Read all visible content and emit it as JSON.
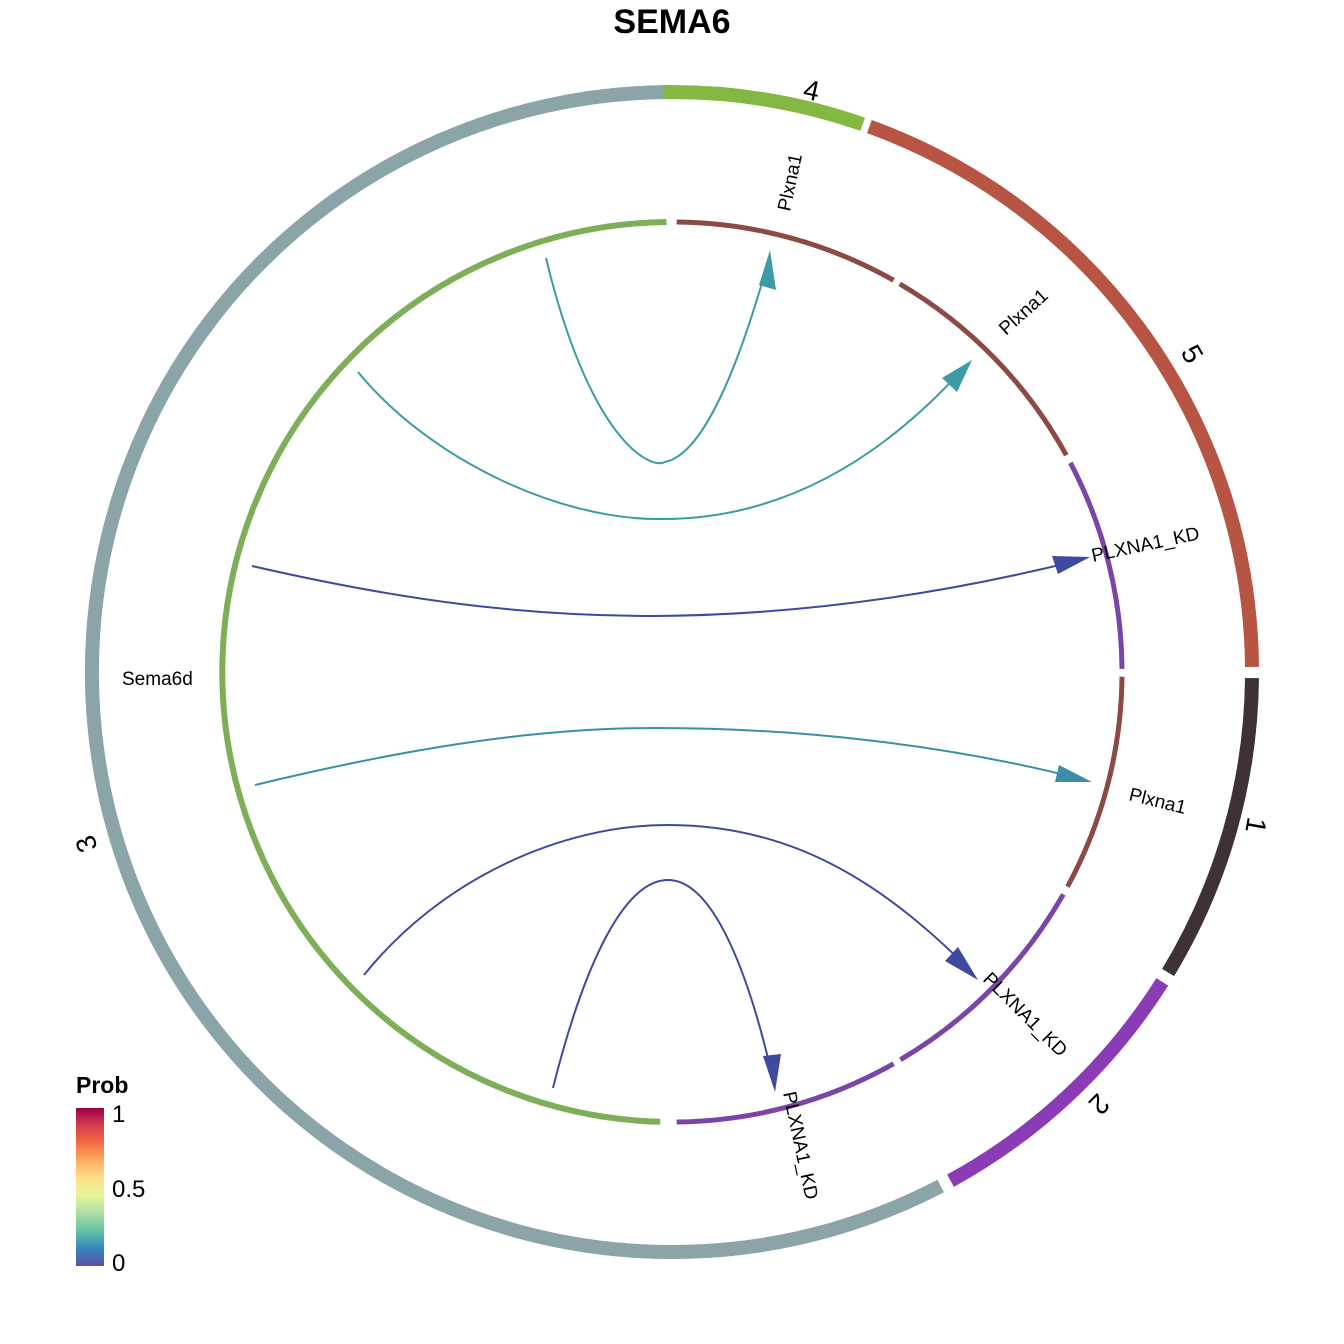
{
  "title": "SEMA6",
  "legend": {
    "title": "Prob",
    "ticks": [
      "1",
      "0.5",
      "0"
    ],
    "gradient": [
      "#5E4FA2",
      "#3288BD",
      "#66C2A5",
      "#ABDDA4",
      "#E6F598",
      "#FEE08B",
      "#FDAE61",
      "#F46D43",
      "#D53E4F",
      "#9E0142"
    ]
  },
  "groups": [
    {
      "label": "1",
      "color": "#3E3236"
    },
    {
      "label": "2",
      "color": "#8A3BB5"
    },
    {
      "label": "3",
      "color": "#8BA4A8"
    },
    {
      "label": "4",
      "color": "#84B843"
    },
    {
      "label": "5",
      "color": "#B85444"
    }
  ],
  "sectors": [
    {
      "label": "Sema6d",
      "color": "#7EAF58"
    },
    {
      "label": "Plxna1",
      "color": "#8C4A45"
    },
    {
      "label": "Plxna1",
      "color": "#8C4A45"
    },
    {
      "label": "PLXNA1_KD",
      "color": "#7B45A8"
    },
    {
      "label": "Plxna1",
      "color": "#8C4A45"
    },
    {
      "label": "PLXNA1_KD",
      "color": "#7B45A8"
    },
    {
      "label": "PLXNA1_KD",
      "color": "#7B45A8"
    }
  ],
  "links": [
    {
      "from": "Sema6d",
      "to": "Plxna1",
      "target_group": "4",
      "color": "#3C9CA6"
    },
    {
      "from": "Sema6d",
      "to": "Plxna1",
      "target_group": "5",
      "color": "#3C9CA6"
    },
    {
      "from": "Sema6d",
      "to": "PLXNA1_KD",
      "target_group": "5",
      "color": "#3F4A9E"
    },
    {
      "from": "Sema6d",
      "to": "Plxna1",
      "target_group": "1",
      "color": "#3A8FA8"
    },
    {
      "from": "Sema6d",
      "to": "PLXNA1_KD",
      "target_group": "2",
      "color": "#3F4A9E"
    },
    {
      "from": "Sema6d",
      "to": "PLXNA1_KD",
      "target_group": "2",
      "color": "#3F4A9E"
    }
  ]
}
